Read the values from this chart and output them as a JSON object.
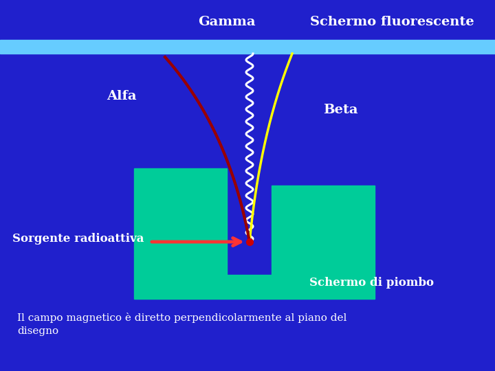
{
  "bg_color": "#2020CC",
  "fluorescent_screen_color": "#66CCFF",
  "lead_screen_color": "#00CC99",
  "arrow_color": "#FF3333",
  "source_dot_color": "#CC0000",
  "gamma_color": "#FFFFFF",
  "beta_color": "#FFFF00",
  "alfa_color": "#990000",
  "title_gamma": "Gamma",
  "title_schermo": "Schermo fluorescente",
  "label_alfa": "Alfa",
  "label_beta": "Beta",
  "label_sorgente": "Sorgente radioattiva",
  "label_schermo_piombo": "Schermo di piombo",
  "label_campo": "Il campo magnetico è diretto perpendicolarmente al piano del\ndisegno",
  "figw": 7.2,
  "figh": 5.4,
  "dpi": 100
}
